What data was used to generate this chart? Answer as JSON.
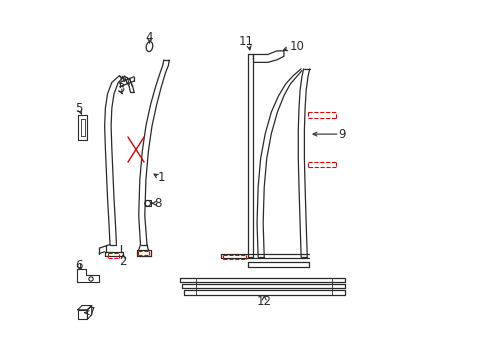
{
  "bg_color": "#ffffff",
  "line_color": "#2a2a2a",
  "red_color": "#e00000",
  "label_fontsize": 8.5,
  "figsize": [
    4.89,
    3.6
  ],
  "dpi": 100,
  "xlim": [
    0,
    10
  ],
  "ylim": [
    0,
    10
  ]
}
